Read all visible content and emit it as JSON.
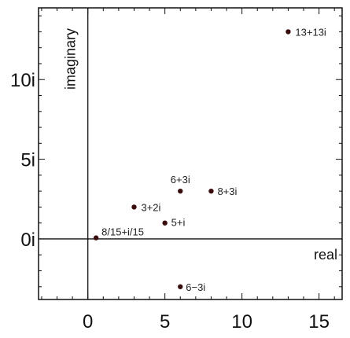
{
  "chart_data": {
    "type": "scatter",
    "xlabel": "real",
    "ylabel": "imaginary",
    "xlim": [
      -3.2,
      16.5
    ],
    "ylim": [
      -3.8,
      14.5
    ],
    "x_ticks": [
      {
        "value": 0,
        "label": "0"
      },
      {
        "value": 5,
        "label": "5"
      },
      {
        "value": 10,
        "label": "10"
      },
      {
        "value": 15,
        "label": "15"
      }
    ],
    "y_ticks": [
      {
        "value": 0,
        "label": "0i"
      },
      {
        "value": 5,
        "label": "5i"
      },
      {
        "value": 10,
        "label": "10i"
      }
    ],
    "points": [
      {
        "x": 13,
        "y": 13,
        "label": "13+13i"
      },
      {
        "x": 6,
        "y": 3,
        "label": "6+3i"
      },
      {
        "x": 8,
        "y": 3,
        "label": "8+3i"
      },
      {
        "x": 3,
        "y": 2,
        "label": "3+2i"
      },
      {
        "x": 5,
        "y": 1,
        "label": "5+i"
      },
      {
        "x": 0.5333,
        "y": 0.0667,
        "label": "8/15+i/15"
      },
      {
        "x": 6,
        "y": -3,
        "label": "6−3i"
      }
    ],
    "point_color": "#3a0d0d",
    "grid": false
  }
}
